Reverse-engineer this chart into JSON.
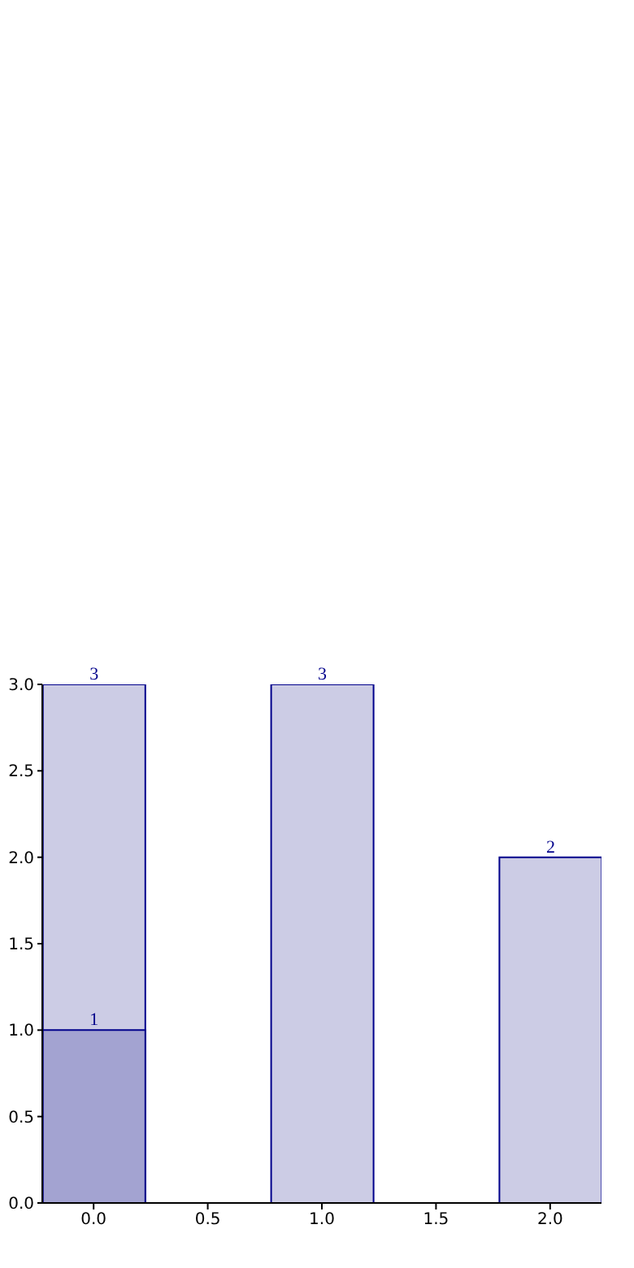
{
  "chart_data": {
    "type": "bar",
    "x": [
      0,
      1,
      2
    ],
    "series": [
      {
        "color": "#ccccE5",
        "values": [
          3,
          3,
          2
        ]
      },
      {
        "color": "#a3a3d1",
        "values": [
          1,
          null,
          null
        ]
      }
    ],
    "xlim": [
      -0.225,
      2.225
    ],
    "xticks": [
      {
        "value": 0,
        "label": "0.0"
      },
      {
        "value": 0.5,
        "label": "0.5"
      },
      {
        "value": 1,
        "label": "1.0"
      },
      {
        "value": 1.5,
        "label": "1.5"
      },
      {
        "value": 2,
        "label": "2.0"
      }
    ],
    "ylim": [
      0,
      3
    ],
    "yticks": [
      {
        "value": 0,
        "label": "0.0"
      },
      {
        "value": 0.5,
        "label": "0.5"
      },
      {
        "value": 1,
        "label": "1.0"
      },
      {
        "value": 1.5,
        "label": "1.5"
      },
      {
        "value": 2,
        "label": "2.0"
      },
      {
        "value": 2.5,
        "label": "2.5"
      },
      {
        "value": 3,
        "label": "3.0"
      }
    ],
    "data_labels": true,
    "grid": false,
    "legend": false
  }
}
